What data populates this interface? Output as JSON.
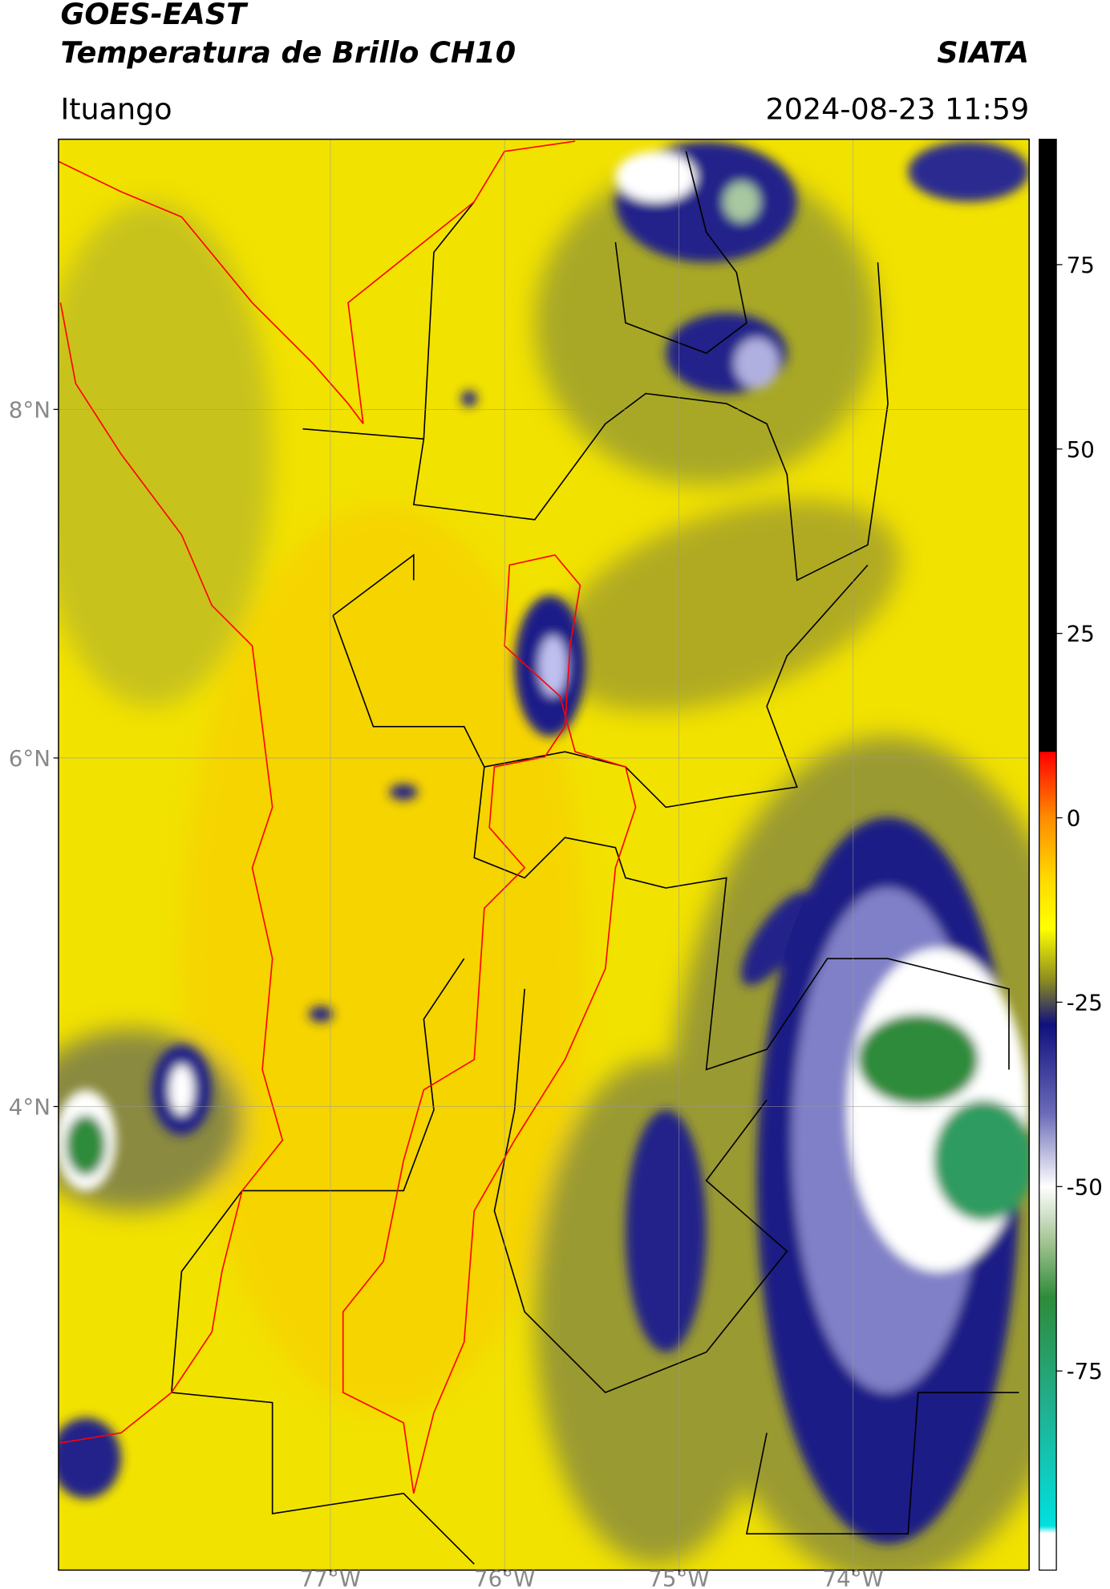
{
  "header": {
    "title": "GOES-EAST",
    "subtitle": "Temperatura de Brillo CH10",
    "source": "SIATA",
    "location": "Ituango",
    "datetime": "2024-08-23 11:59"
  },
  "map": {
    "lonlim": [
      -78.56,
      -72.99
    ],
    "latlim": [
      1.34,
      9.55
    ],
    "grid": true,
    "lonticks": [
      {
        "value": -77,
        "label": "77°W"
      },
      {
        "value": -76,
        "label": "76°W"
      },
      {
        "value": -75,
        "label": "75°W"
      },
      {
        "value": -74,
        "label": "74°W"
      }
    ],
    "latticks": [
      {
        "value": 8,
        "label": "8°N"
      },
      {
        "value": 6,
        "label": "6°N"
      },
      {
        "value": 4,
        "label": "4°N"
      }
    ]
  },
  "colorbar": {
    "lim": [
      -102,
      92
    ],
    "ticks": [
      -75,
      -50,
      -25,
      0,
      25,
      50,
      75
    ],
    "stops": [
      {
        "value": 92,
        "color": "#000000"
      },
      {
        "value": 9,
        "color": "#000000"
      },
      {
        "value": 8.9,
        "color": "#ff0000"
      },
      {
        "value": 0,
        "color": "#ff8c00"
      },
      {
        "value": -8,
        "color": "#ffd700"
      },
      {
        "value": -15,
        "color": "#ffff00"
      },
      {
        "value": -22,
        "color": "#8c8c20"
      },
      {
        "value": -28,
        "color": "#10107e"
      },
      {
        "value": -40,
        "color": "#6a6ab8"
      },
      {
        "value": -50,
        "color": "#ffffff"
      },
      {
        "value": -58,
        "color": "#9cc08c"
      },
      {
        "value": -65,
        "color": "#2e8b3a"
      },
      {
        "value": -80,
        "color": "#20b090"
      },
      {
        "value": -96,
        "color": "#00e0e0"
      },
      {
        "value": -97,
        "color": "#ffffff"
      },
      {
        "value": -102,
        "color": "#ffffff"
      }
    ]
  }
}
